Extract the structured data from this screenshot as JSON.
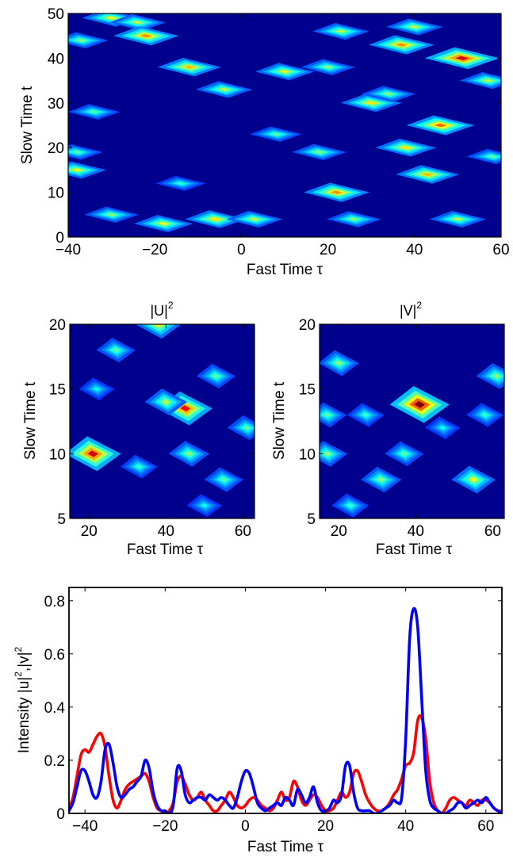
{
  "chart_data": [
    {
      "type": "heatmap",
      "xlabel": "Fast Time τ",
      "ylabel": "Slow Time t",
      "xlim": [
        -40,
        60
      ],
      "ylim": [
        0,
        50
      ],
      "xticks": [
        -40,
        -20,
        0,
        20,
        40,
        60
      ],
      "yticks": [
        0,
        10,
        20,
        30,
        40,
        50
      ],
      "colormap": "jet",
      "background_color": "#00008f",
      "peaks": [
        {
          "x": -37,
          "y": 44,
          "value": 0.45
        },
        {
          "x": -30,
          "y": 49,
          "value": 0.55
        },
        {
          "x": -24,
          "y": 48,
          "value": 0.5
        },
        {
          "x": -22,
          "y": 45,
          "value": 0.7
        },
        {
          "x": -12,
          "y": 38,
          "value": 0.65
        },
        {
          "x": -4,
          "y": 33,
          "value": 0.5
        },
        {
          "x": -6,
          "y": 4,
          "value": 0.6
        },
        {
          "x": -18,
          "y": 3,
          "value": 0.55
        },
        {
          "x": -38,
          "y": 15,
          "value": 0.55
        },
        {
          "x": -38,
          "y": 19,
          "value": 0.4
        },
        {
          "x": -30,
          "y": 5,
          "value": 0.45
        },
        {
          "x": 3,
          "y": 4,
          "value": 0.5
        },
        {
          "x": 10,
          "y": 37,
          "value": 0.55
        },
        {
          "x": 20,
          "y": 38,
          "value": 0.45
        },
        {
          "x": 22,
          "y": 10,
          "value": 0.7
        },
        {
          "x": 23,
          "y": 46,
          "value": 0.5
        },
        {
          "x": 30,
          "y": 30,
          "value": 0.6
        },
        {
          "x": 34,
          "y": 32,
          "value": 0.45
        },
        {
          "x": 37,
          "y": 43,
          "value": 0.7
        },
        {
          "x": 38,
          "y": 20,
          "value": 0.6
        },
        {
          "x": 40,
          "y": 47,
          "value": 0.5
        },
        {
          "x": 43,
          "y": 14,
          "value": 0.65
        },
        {
          "x": 46,
          "y": 25,
          "value": 0.75
        },
        {
          "x": 51,
          "y": 40,
          "value": 0.9
        },
        {
          "x": 50,
          "y": 4,
          "value": 0.5
        },
        {
          "x": 57,
          "y": 35,
          "value": 0.5
        },
        {
          "x": 58,
          "y": 18,
          "value": 0.4
        },
        {
          "x": 18,
          "y": 19,
          "value": 0.45
        },
        {
          "x": -34,
          "y": 28,
          "value": 0.4
        },
        {
          "x": 26,
          "y": 4,
          "value": 0.45
        },
        {
          "x": 8,
          "y": 23,
          "value": 0.4
        },
        {
          "x": -14,
          "y": 12,
          "value": 0.35
        }
      ]
    },
    {
      "type": "heatmap",
      "title": "|U|",
      "title_superscript": "2",
      "xlabel": "Fast Time τ",
      "ylabel": "Slow Time t",
      "xlim": [
        15,
        63
      ],
      "ylim": [
        5,
        20
      ],
      "xticks": [
        20,
        40,
        60
      ],
      "yticks": [
        5,
        10,
        15,
        20
      ],
      "colormap": "jet",
      "background_color": "#00008f",
      "peaks": [
        {
          "x": 21,
          "y": 10,
          "value": 0.9
        },
        {
          "x": 45,
          "y": 13.5,
          "value": 0.85
        },
        {
          "x": 40,
          "y": 14,
          "value": 0.5
        },
        {
          "x": 38,
          "y": 20,
          "value": 0.6
        },
        {
          "x": 27,
          "y": 18,
          "value": 0.4
        },
        {
          "x": 53,
          "y": 16,
          "value": 0.4
        },
        {
          "x": 55,
          "y": 8,
          "value": 0.4
        },
        {
          "x": 46,
          "y": 10,
          "value": 0.45
        },
        {
          "x": 33,
          "y": 9,
          "value": 0.35
        },
        {
          "x": 61,
          "y": 12,
          "value": 0.4
        },
        {
          "x": 22,
          "y": 15,
          "value": 0.3
        },
        {
          "x": 50,
          "y": 6,
          "value": 0.3
        }
      ]
    },
    {
      "type": "heatmap",
      "title": "|V|",
      "title_superscript": "2",
      "xlabel": "Fast Time τ",
      "ylabel": "Slow Time t",
      "xlim": [
        15,
        63
      ],
      "ylim": [
        5,
        20
      ],
      "xticks": [
        20,
        40,
        60
      ],
      "yticks": [
        5,
        10,
        15,
        20
      ],
      "colormap": "jet",
      "background_color": "#00008f",
      "peaks": [
        {
          "x": 41,
          "y": 13.8,
          "value": 1.0
        },
        {
          "x": 20,
          "y": 17,
          "value": 0.45
        },
        {
          "x": 17,
          "y": 10,
          "value": 0.45
        },
        {
          "x": 17,
          "y": 13,
          "value": 0.4
        },
        {
          "x": 27,
          "y": 13,
          "value": 0.35
        },
        {
          "x": 37,
          "y": 10,
          "value": 0.4
        },
        {
          "x": 31,
          "y": 8,
          "value": 0.45
        },
        {
          "x": 55,
          "y": 8,
          "value": 0.55
        },
        {
          "x": 58,
          "y": 13,
          "value": 0.35
        },
        {
          "x": 61,
          "y": 16,
          "value": 0.45
        },
        {
          "x": 23,
          "y": 6,
          "value": 0.35
        },
        {
          "x": 47,
          "y": 12,
          "value": 0.3
        }
      ]
    },
    {
      "type": "line",
      "xlabel": "Fast Time τ",
      "ylabel": "Intensity |u|",
      "ylabel_sup1": "2",
      "ylabel_mid": ",|v|",
      "ylabel_sup2": "2",
      "xlim": [
        -44,
        64
      ],
      "ylim": [
        0,
        0.85
      ],
      "xticks": [
        -40,
        -20,
        0,
        20,
        40,
        60
      ],
      "yticks": [
        0,
        0.2,
        0.4,
        0.6,
        0.8
      ],
      "ytick_labels": [
        "0",
        "0.2",
        "0.4",
        "0.6",
        "0.8"
      ],
      "grid": false,
      "series": [
        {
          "color": "#ff0000",
          "x": [
            -44,
            -43,
            -42,
            -41,
            -40,
            -39,
            -38,
            -37,
            -36,
            -35,
            -34,
            -33,
            -32,
            -31,
            -30,
            -29,
            -28,
            -27,
            -26,
            -25,
            -24,
            -23,
            -22,
            -21,
            -20,
            -19,
            -18,
            -17,
            -16,
            -15,
            -14,
            -13,
            -12,
            -11,
            -10,
            -9,
            -8,
            -7,
            -6,
            -5,
            -4,
            -3,
            -2,
            -1,
            0,
            1,
            2,
            3,
            4,
            5,
            6,
            7,
            8,
            9,
            10,
            11,
            12,
            13,
            14,
            15,
            16,
            17,
            18,
            19,
            20,
            21,
            22,
            23,
            24,
            25,
            26,
            27,
            28,
            29,
            30,
            31,
            32,
            33,
            34,
            35,
            36,
            37,
            38,
            39,
            40,
            41,
            42,
            43,
            44,
            45,
            46,
            47,
            48,
            49,
            50,
            51,
            52,
            53,
            54,
            55,
            56,
            57,
            58,
            59,
            60,
            61,
            62,
            63,
            64
          ],
          "y": [
            0.02,
            0.06,
            0.14,
            0.22,
            0.24,
            0.23,
            0.26,
            0.29,
            0.3,
            0.25,
            0.14,
            0.05,
            0.02,
            0.05,
            0.09,
            0.11,
            0.12,
            0.13,
            0.14,
            0.15,
            0.12,
            0.06,
            0.02,
            0.01,
            0.0,
            0.01,
            0.04,
            0.12,
            0.14,
            0.11,
            0.07,
            0.05,
            0.06,
            0.08,
            0.05,
            0.03,
            0.01,
            0.01,
            0.03,
            0.05,
            0.08,
            0.06,
            0.03,
            0.02,
            0.03,
            0.05,
            0.06,
            0.05,
            0.03,
            0.02,
            0.01,
            0.02,
            0.05,
            0.08,
            0.05,
            0.06,
            0.12,
            0.1,
            0.05,
            0.03,
            0.05,
            0.07,
            0.06,
            0.03,
            0.01,
            0.01,
            0.02,
            0.05,
            0.08,
            0.06,
            0.08,
            0.15,
            0.16,
            0.12,
            0.07,
            0.04,
            0.02,
            0.01,
            0.01,
            0.02,
            0.04,
            0.07,
            0.09,
            0.13,
            0.18,
            0.19,
            0.23,
            0.35,
            0.36,
            0.28,
            0.12,
            0.04,
            0.01,
            0.0,
            0.02,
            0.05,
            0.06,
            0.05,
            0.04,
            0.03,
            0.05,
            0.04,
            0.03,
            0.05,
            0.05,
            0.04,
            0.02,
            0.01,
            0.01
          ]
        },
        {
          "color": "#0000ff",
          "x": [
            -44,
            -43,
            -42,
            -41,
            -40,
            -39,
            -38,
            -37,
            -36,
            -35,
            -34,
            -33,
            -32,
            -31,
            -30,
            -29,
            -28,
            -27,
            -26,
            -25,
            -24,
            -23,
            -22,
            -21,
            -20,
            -19,
            -18,
            -17,
            -16,
            -15,
            -14,
            -13,
            -12,
            -11,
            -10,
            -9,
            -8,
            -7,
            -6,
            -5,
            -4,
            -3,
            -2,
            -1,
            0,
            1,
            2,
            3,
            4,
            5,
            6,
            7,
            8,
            9,
            10,
            11,
            12,
            13,
            14,
            15,
            16,
            17,
            18,
            19,
            20,
            21,
            22,
            23,
            24,
            25,
            26,
            27,
            28,
            29,
            30,
            31,
            32,
            33,
            34,
            35,
            36,
            37,
            38,
            39,
            40,
            41,
            42,
            43,
            44,
            45,
            46,
            47,
            48,
            49,
            50,
            51,
            52,
            53,
            54,
            55,
            56,
            57,
            58,
            59,
            60,
            61,
            62,
            63,
            64
          ],
          "y": [
            0.01,
            0.04,
            0.1,
            0.16,
            0.16,
            0.12,
            0.07,
            0.06,
            0.12,
            0.24,
            0.26,
            0.19,
            0.1,
            0.06,
            0.07,
            0.09,
            0.1,
            0.12,
            0.14,
            0.2,
            0.17,
            0.08,
            0.03,
            0.01,
            0.01,
            0.0,
            0.03,
            0.17,
            0.16,
            0.07,
            0.04,
            0.05,
            0.06,
            0.06,
            0.05,
            0.07,
            0.06,
            0.05,
            0.06,
            0.05,
            0.03,
            0.02,
            0.06,
            0.12,
            0.16,
            0.15,
            0.1,
            0.04,
            0.02,
            0.01,
            0.02,
            0.03,
            0.04,
            0.03,
            0.06,
            0.05,
            0.03,
            0.09,
            0.07,
            0.04,
            0.06,
            0.1,
            0.04,
            0.01,
            0.01,
            0.02,
            0.05,
            0.04,
            0.07,
            0.18,
            0.18,
            0.08,
            0.02,
            0.01,
            0.01,
            0.01,
            0.0,
            0.0,
            0.01,
            0.02,
            0.03,
            0.05,
            0.04,
            0.06,
            0.28,
            0.66,
            0.77,
            0.7,
            0.43,
            0.16,
            0.05,
            0.02,
            0.01,
            0.0,
            0.0,
            0.01,
            0.02,
            0.04,
            0.04,
            0.02,
            0.03,
            0.04,
            0.05,
            0.04,
            0.06,
            0.04,
            0.02,
            0.01,
            0.0
          ]
        }
      ]
    }
  ]
}
